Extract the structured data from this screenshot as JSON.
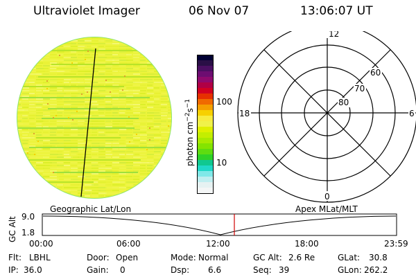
{
  "header": {
    "instrument": "Ultraviolet Imager",
    "date": "06 Nov 07",
    "time": "13:06:07 UT"
  },
  "colorbar": {
    "unit_label": "photon cm",
    "unit_exp1": "−2",
    "unit_s": "s",
    "unit_exp2": "−1",
    "tick_100": "100",
    "tick_10": "10",
    "colors": [
      "#000033",
      "#2a0f46",
      "#4b0f62",
      "#6d0d71",
      "#8f0a6e",
      "#b00045",
      "#d20021",
      "#e63000",
      "#f06a00",
      "#f5a000",
      "#f7d000",
      "#f7ec40",
      "#f0f24a",
      "#e0f000",
      "#c4ee00",
      "#a8ea00",
      "#84e400",
      "#5edc10",
      "#2ed228",
      "#10c890",
      "#20d8c8",
      "#80e8e8",
      "#c0eef0",
      "#e6f2f2",
      "#f4f6f6"
    ]
  },
  "polar": {
    "mlt_12": "12",
    "mlt_18": "18",
    "mlt_6": "6",
    "mlt_0": "0",
    "lat_60": "60",
    "lat_70": "70",
    "lat_80": "80"
  },
  "timeline": {
    "left_label": "Geographic Lat/Lon",
    "right_label": "Apex MLat/MLT",
    "ylabel": "GC Alt",
    "y_top": "9.0",
    "y_bottom": "1.8",
    "x_ticks": [
      "00:00",
      "06:00",
      "12:00",
      "18:00",
      "23:59"
    ],
    "current_marker_color": "#d00000"
  },
  "status": {
    "filter_label": "Flt:",
    "filter_value": "LBHL",
    "ip_label": "IP:",
    "ip_value": "36.0",
    "door_label": "Door:",
    "door_value": "Open",
    "gain_label": "Gain:",
    "gain_value": "0",
    "mode_label": "Mode:",
    "mode_value": "Normal",
    "dsp_label": "Dsp:",
    "dsp_value": "6.6",
    "gcalt_label": "GC Alt:",
    "gcalt_value": "2.6 Re",
    "seq_label": "Seq:",
    "seq_value": "39",
    "glat_label": "GLat:",
    "glat_value": "30.8",
    "glon_label": "GLon:",
    "glon_value": "262.2"
  }
}
